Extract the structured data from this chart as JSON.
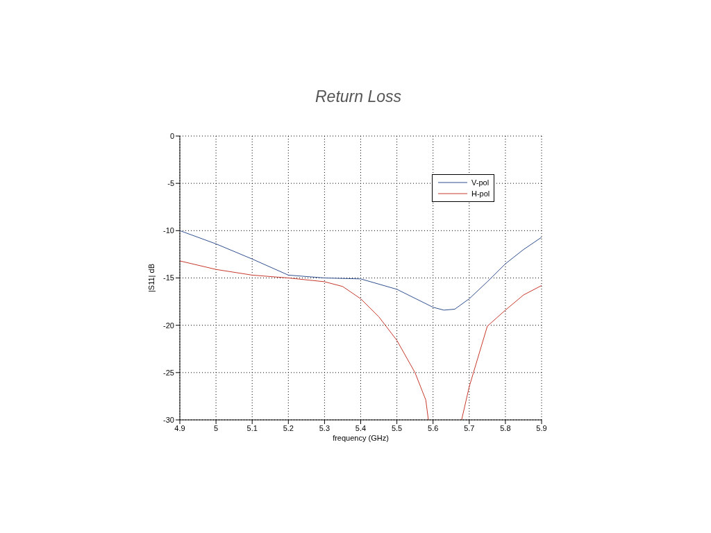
{
  "chart_data": {
    "type": "line",
    "title": "Return Loss",
    "xlabel": "frequency (GHz)",
    "ylabel": "|S11| dB",
    "xlim": [
      4.9,
      5.9
    ],
    "xticks": [
      4.9,
      5,
      5.1,
      5.2,
      5.3,
      5.4,
      5.5,
      5.6,
      5.7,
      5.8,
      5.9
    ],
    "ylim": [
      -30,
      0
    ],
    "yticks": [
      -30,
      -25,
      -20,
      -15,
      -10,
      -5,
      0
    ],
    "grid": true,
    "legend": "top right",
    "marker": "none",
    "line_style": "solid",
    "series": [
      {
        "name": "V-pol",
        "color": "#2f4f8f",
        "x": [
          4.9,
          5.0,
          5.1,
          5.2,
          5.3,
          5.4,
          5.5,
          5.6,
          5.63,
          5.66,
          5.7,
          5.75,
          5.8,
          5.85,
          5.9
        ],
        "values": [
          -10.0,
          -11.4,
          -13.0,
          -14.7,
          -15.0,
          -15.1,
          -16.2,
          -18.1,
          -18.4,
          -18.3,
          -17.2,
          -15.4,
          -13.5,
          -12.0,
          -10.7
        ]
      },
      {
        "name": "H-pol",
        "color": "#c8382c",
        "x": [
          4.9,
          5.0,
          5.1,
          5.2,
          5.3,
          5.35,
          5.4,
          5.45,
          5.5,
          5.55,
          5.58,
          5.587,
          5.63,
          5.679,
          5.7,
          5.75,
          5.8,
          5.85,
          5.9
        ],
        "values": [
          -13.2,
          -14.1,
          -14.7,
          -15.0,
          -15.4,
          -15.9,
          -17.2,
          -19.1,
          -21.6,
          -25.0,
          -27.9,
          -30,
          null,
          -30,
          -26.5,
          -20.1,
          -18.4,
          -16.8,
          -15.8
        ]
      }
    ]
  }
}
